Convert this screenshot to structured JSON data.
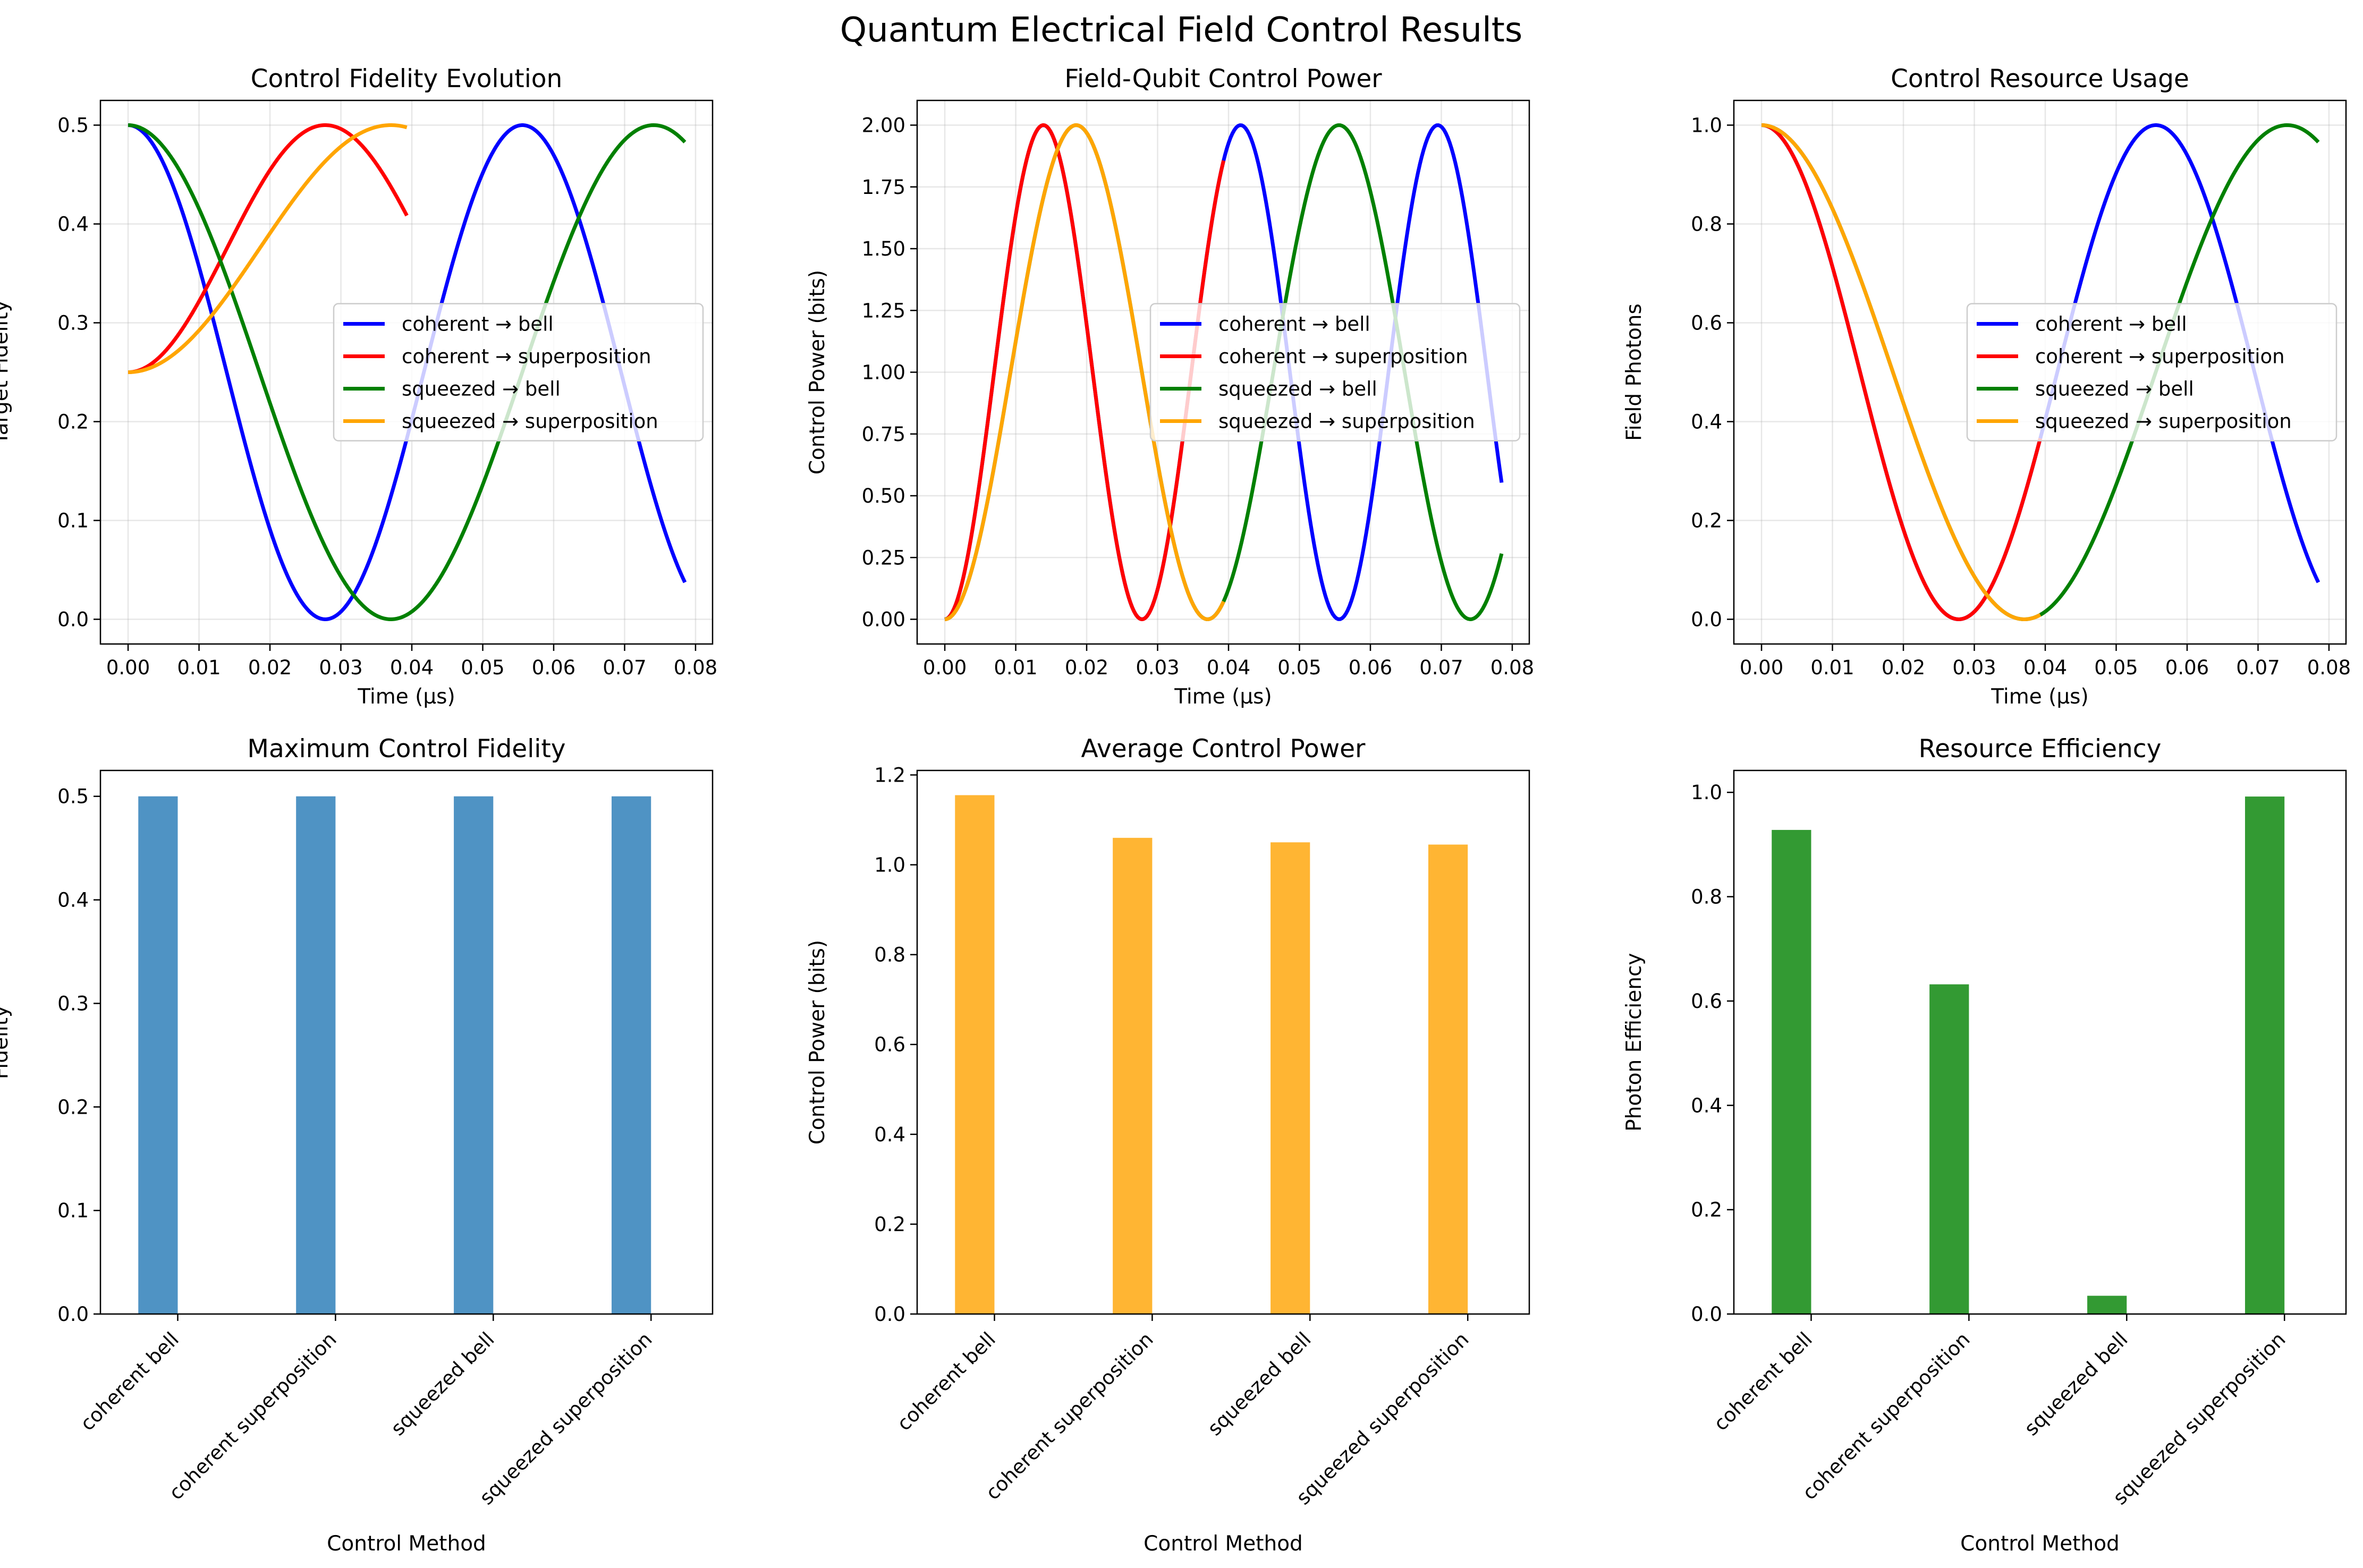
{
  "figure": {
    "title": "Quantum Electrical Field Control Results"
  },
  "chart_data": [
    {
      "type": "line",
      "title": "Control Fidelity Evolution",
      "xlabel": "Time (μs)",
      "ylabel": "Target Fidelity",
      "xlim": [
        -0.0039,
        0.0824
      ],
      "ylim": [
        -0.025,
        0.525
      ],
      "xticks": [
        0,
        0.01,
        0.02,
        0.03,
        0.04,
        0.05,
        0.06,
        0.07,
        0.08
      ],
      "xtick_labels": [
        "0.00",
        "0.01",
        "0.02",
        "0.03",
        "0.04",
        "0.05",
        "0.06",
        "0.07",
        "0.08"
      ],
      "yticks": [
        0,
        0.1,
        0.2,
        0.3,
        0.4,
        0.5
      ],
      "ytick_labels": [
        "0.0",
        "0.1",
        "0.2",
        "0.3",
        "0.4",
        "0.5"
      ],
      "grid": true,
      "legend": "center-right",
      "series": [
        {
          "name": "coherent → bell",
          "color": "#0000ff",
          "fn": "fid",
          "A": 0.25,
          "B": 0.25,
          "T": 0.0556,
          "sign": 1,
          "t0": 0,
          "t1": 0.0785
        },
        {
          "name": "coherent → superposition",
          "color": "#ff0000",
          "fn": "fid",
          "A": 0.375,
          "B": 0.125,
          "T": 0.0556,
          "sign": -1,
          "t0": 0,
          "t1": 0.0393
        },
        {
          "name": "squeezed → bell",
          "color": "#008000",
          "fn": "fid",
          "A": 0.25,
          "B": 0.25,
          "T": 0.0741,
          "sign": 1,
          "t0": 0,
          "t1": 0.0785
        },
        {
          "name": "squeezed → superposition",
          "color": "#ffa500",
          "fn": "fid",
          "A": 0.375,
          "B": 0.125,
          "T": 0.0741,
          "sign": -1,
          "t0": 0,
          "t1": 0.0393
        }
      ]
    },
    {
      "type": "line",
      "title": "Field-Qubit Control Power",
      "xlabel": "Time (μs)",
      "ylabel": "Control Power (bits)",
      "xlim": [
        -0.0039,
        0.0824
      ],
      "ylim": [
        -0.1,
        2.1
      ],
      "xticks": [
        0,
        0.01,
        0.02,
        0.03,
        0.04,
        0.05,
        0.06,
        0.07,
        0.08
      ],
      "xtick_labels": [
        "0.00",
        "0.01",
        "0.02",
        "0.03",
        "0.04",
        "0.05",
        "0.06",
        "0.07",
        "0.08"
      ],
      "yticks": [
        0,
        0.25,
        0.5,
        0.75,
        1.0,
        1.25,
        1.5,
        1.75,
        2.0
      ],
      "ytick_labels": [
        "0.00",
        "0.25",
        "0.50",
        "0.75",
        "1.00",
        "1.25",
        "1.50",
        "1.75",
        "2.00"
      ],
      "grid": true,
      "legend": "center-right",
      "series": [
        {
          "name": "coherent → bell",
          "color": "#0000ff",
          "fn": "pow",
          "T": 0.0556,
          "t0": 0,
          "t1": 0.0785
        },
        {
          "name": "coherent → superposition",
          "color": "#ff0000",
          "fn": "pow",
          "T": 0.0556,
          "t0": 0,
          "t1": 0.0393
        },
        {
          "name": "squeezed → bell",
          "color": "#008000",
          "fn": "pow",
          "T": 0.0741,
          "t0": 0,
          "t1": 0.0785
        },
        {
          "name": "squeezed → superposition",
          "color": "#ffa500",
          "fn": "pow",
          "T": 0.0741,
          "t0": 0,
          "t1": 0.0393
        }
      ]
    },
    {
      "type": "line",
      "title": "Control Resource Usage",
      "xlabel": "Time (μs)",
      "ylabel": "Field Photons",
      "xlim": [
        -0.0039,
        0.0824
      ],
      "ylim": [
        -0.05,
        1.05
      ],
      "xticks": [
        0,
        0.01,
        0.02,
        0.03,
        0.04,
        0.05,
        0.06,
        0.07,
        0.08
      ],
      "xtick_labels": [
        "0.00",
        "0.01",
        "0.02",
        "0.03",
        "0.04",
        "0.05",
        "0.06",
        "0.07",
        "0.08"
      ],
      "yticks": [
        0,
        0.2,
        0.4,
        0.6,
        0.8,
        1.0
      ],
      "ytick_labels": [
        "0.0",
        "0.2",
        "0.4",
        "0.6",
        "0.8",
        "1.0"
      ],
      "grid": true,
      "legend": "center-right",
      "series": [
        {
          "name": "coherent → bell",
          "color": "#0000ff",
          "fn": "pho",
          "T": 0.0556,
          "t0": 0,
          "t1": 0.0785
        },
        {
          "name": "coherent → superposition",
          "color": "#ff0000",
          "fn": "pho",
          "T": 0.0556,
          "t0": 0,
          "t1": 0.0393
        },
        {
          "name": "squeezed → bell",
          "color": "#008000",
          "fn": "pho",
          "T": 0.0741,
          "t0": 0,
          "t1": 0.0785
        },
        {
          "name": "squeezed → superposition",
          "color": "#ffa500",
          "fn": "pho",
          "T": 0.0741,
          "t0": 0,
          "t1": 0.0393
        }
      ]
    },
    {
      "type": "bar",
      "title": "Maximum Control Fidelity",
      "xlabel": "Control Method",
      "ylabel": "Fidelity",
      "categories": [
        "coherent bell",
        "coherent superposition",
        "squeezed bell",
        "squeezed superposition"
      ],
      "values": [
        0.5,
        0.5,
        0.5,
        0.5
      ],
      "ylim": [
        0,
        0.525
      ],
      "yticks": [
        0,
        0.1,
        0.2,
        0.3,
        0.4,
        0.5
      ],
      "ytick_labels": [
        "0.0",
        "0.1",
        "0.2",
        "0.3",
        "0.4",
        "0.5"
      ],
      "color": "#4f93c4",
      "grid": false
    },
    {
      "type": "bar",
      "title": "Average Control Power",
      "xlabel": "Control Method",
      "ylabel": "Control Power (bits)",
      "categories": [
        "coherent bell",
        "coherent superposition",
        "squeezed bell",
        "squeezed superposition"
      ],
      "values": [
        1.155,
        1.06,
        1.05,
        1.045
      ],
      "ylim": [
        0,
        1.21
      ],
      "yticks": [
        0,
        0.2,
        0.4,
        0.6,
        0.8,
        1.0,
        1.2
      ],
      "ytick_labels": [
        "0.0",
        "0.2",
        "0.4",
        "0.6",
        "0.8",
        "1.0",
        "1.2"
      ],
      "color": "#ffb533",
      "grid": false
    },
    {
      "type": "bar",
      "title": "Resource Efficiency",
      "xlabel": "Control Method",
      "ylabel": "Photon Efficiency",
      "categories": [
        "coherent bell",
        "coherent superposition",
        "squeezed bell",
        "squeezed superposition"
      ],
      "values": [
        0.928,
        0.632,
        0.035,
        0.992
      ],
      "ylim": [
        0,
        1.042
      ],
      "yticks": [
        0,
        0.2,
        0.4,
        0.6,
        0.8,
        1.0
      ],
      "ytick_labels": [
        "0.0",
        "0.2",
        "0.4",
        "0.6",
        "0.8",
        "1.0"
      ],
      "color": "#339a33",
      "grid": false
    }
  ]
}
